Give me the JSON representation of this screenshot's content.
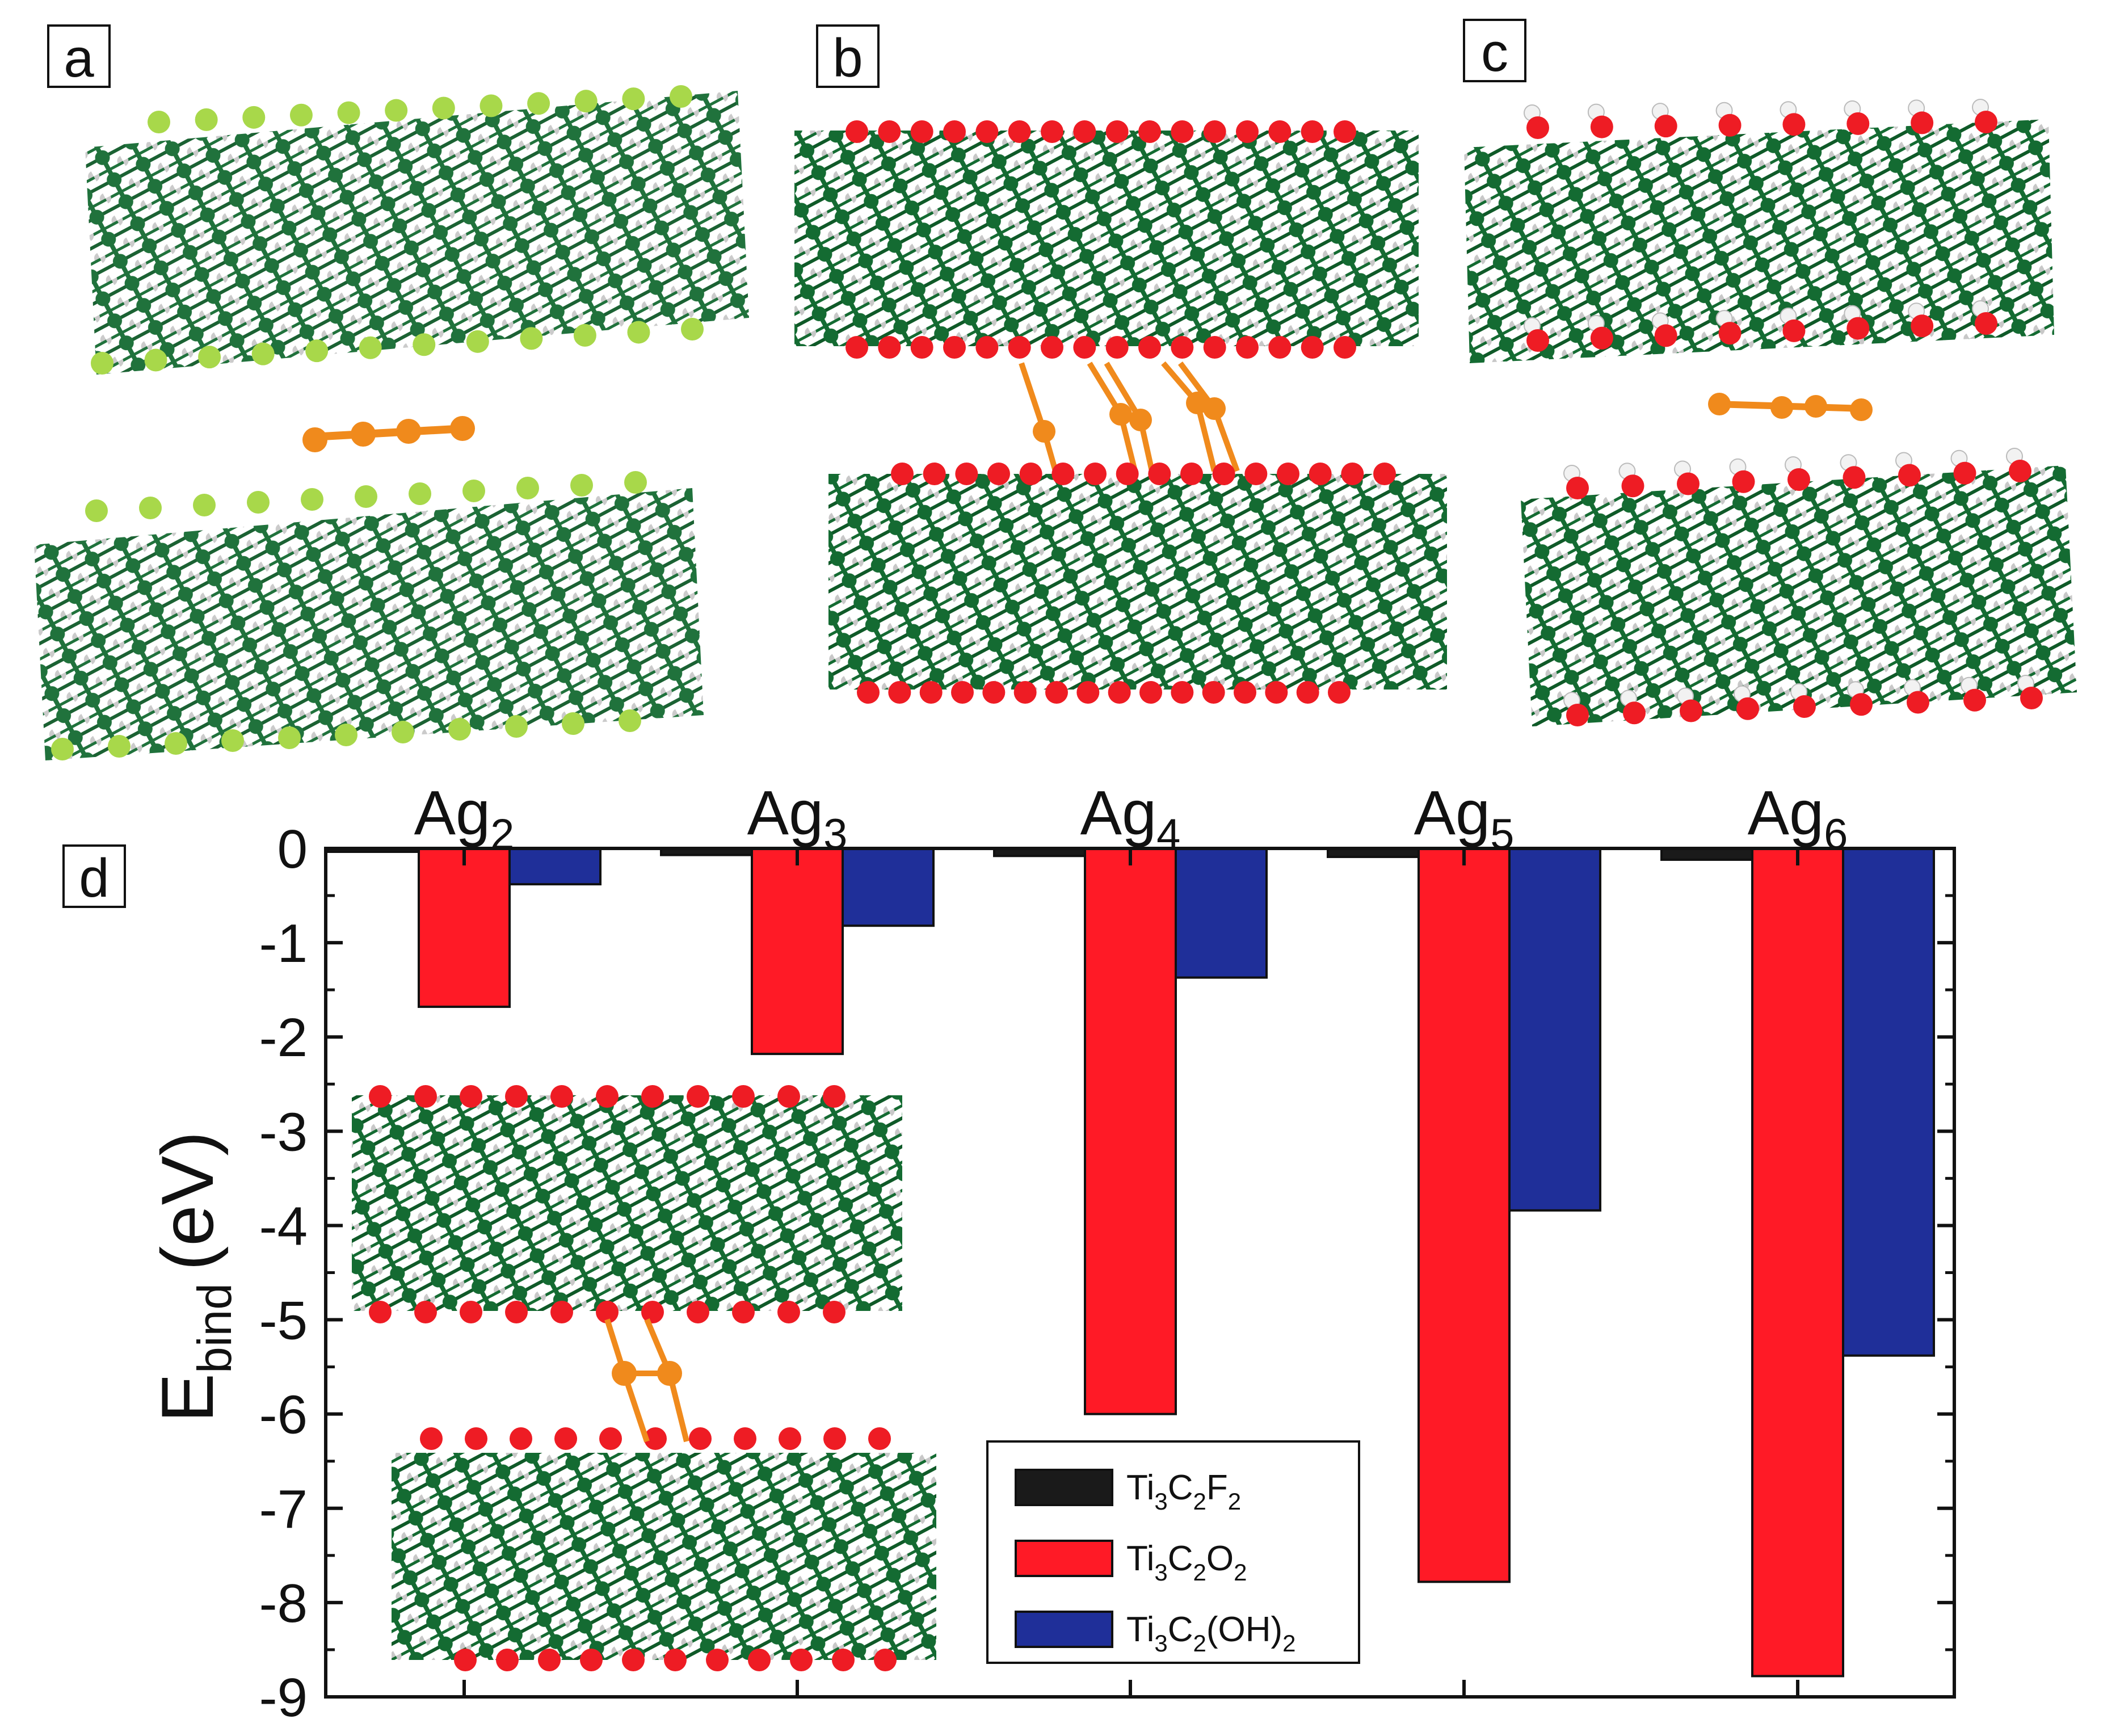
{
  "panel_labels": {
    "a": "a",
    "b": "b",
    "c": "c",
    "d": "d"
  },
  "chart_data": {
    "type": "bar",
    "categories": [
      {
        "base": "Ag",
        "sub": "2"
      },
      {
        "base": "Ag",
        "sub": "3"
      },
      {
        "base": "Ag",
        "sub": "4"
      },
      {
        "base": "Ag",
        "sub": "5"
      },
      {
        "base": "Ag",
        "sub": "6"
      }
    ],
    "ylabel": {
      "base": "E",
      "sub": "bind",
      "unit": "(eV)"
    },
    "ylim": [
      -9,
      0
    ],
    "yticks": [
      "0",
      "-1",
      "-2",
      "-3",
      "-4",
      "-5",
      "-6",
      "-7",
      "-8",
      "-9"
    ],
    "series": [
      {
        "name": "Ti3C2F2",
        "label_parts": [
          [
            "Ti",
            ""
          ],
          [
            "3",
            "sub"
          ],
          [
            "C",
            ""
          ],
          [
            "2",
            "sub"
          ],
          [
            "F",
            ""
          ],
          [
            "2",
            "sub"
          ]
        ],
        "color": "#1a1a1a",
        "values": [
          -0.03,
          -0.07,
          -0.08,
          -0.09,
          -0.12
        ]
      },
      {
        "name": "Ti3C2O2",
        "label_parts": [
          [
            "Ti",
            ""
          ],
          [
            "3",
            "sub"
          ],
          [
            "C",
            ""
          ],
          [
            "2",
            "sub"
          ],
          [
            "O",
            ""
          ],
          [
            "2",
            "sub"
          ]
        ],
        "color": "#ff1a26",
        "values": [
          -1.68,
          -2.18,
          -6.0,
          -7.78,
          -8.78
        ]
      },
      {
        "name": "Ti3C2(OH)2",
        "label_parts": [
          [
            "Ti",
            ""
          ],
          [
            "3",
            "sub"
          ],
          [
            "C",
            ""
          ],
          [
            "2",
            "sub"
          ],
          [
            "(OH)",
            ""
          ],
          [
            "2",
            "sub"
          ]
        ],
        "color": "#1f2f99",
        "values": [
          -0.38,
          -0.82,
          -1.37,
          -3.84,
          -5.38
        ]
      }
    ],
    "legend_position": "bottom-center"
  },
  "structures": {
    "ti_color": "#146b32",
    "c_color": "#c8c8c8",
    "f_color": "#a8d84a",
    "o_color": "#ee1c24",
    "h_color": "#f2f2f2",
    "ag_color": "#f08a1c"
  }
}
